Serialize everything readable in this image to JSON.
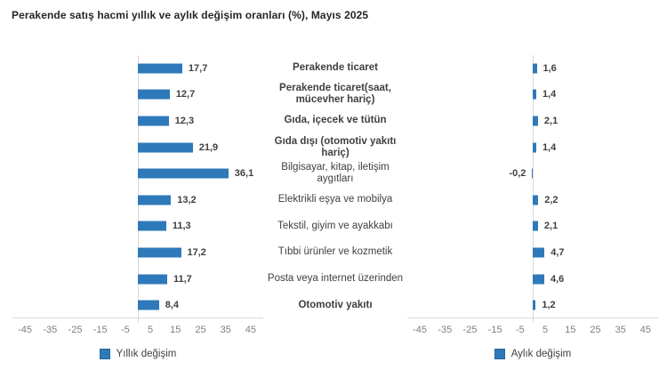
{
  "title": "Perakende satış hacmi yıllık ve aylık değişim oranları (%), Mayıs 2025",
  "colors": {
    "bar": "#2E79B9",
    "axis_line": "#D9D9D9",
    "tick_text": "#7F7F7F",
    "label_text": "#404040",
    "value_text": "#3F3F3F",
    "title_text": "#262626"
  },
  "chart_data": {
    "type": "bar",
    "orientation": "horizontal",
    "title": "Perakende satış hacmi yıllık ve aylık değişim oranları (%), Mayıs 2025",
    "categories": [
      "Perakende ticaret",
      "Perakende ticaret(saat, mücevher hariç)",
      "Gıda, içecek ve tütün",
      "Gıda dışı (otomotiv yakıtı hariç)",
      "Bilgisayar, kitap, iletişim aygıtları",
      "Elektrikli eşya ve mobilya",
      "Tekstil, giyim ve ayakkabı",
      "Tıbbi ürünler ve kozmetik",
      "Posta veya internet üzerinden",
      "Otomotiv yakıtı"
    ],
    "category_bold": [
      true,
      true,
      true,
      true,
      false,
      false,
      false,
      false,
      false,
      true
    ],
    "series": [
      {
        "name": "Yıllık değişim",
        "values": [
          17.7,
          12.7,
          12.3,
          21.9,
          36.1,
          13.2,
          11.3,
          17.2,
          11.7,
          8.4
        ],
        "display_values": [
          "17,7",
          "12,7",
          "12,3",
          "21,9",
          "36,1",
          "13,2",
          "11,3",
          "17,2",
          "11,7",
          "8,4"
        ]
      },
      {
        "name": "Aylık değişim",
        "values": [
          1.6,
          1.4,
          2.1,
          1.4,
          -0.2,
          2.2,
          2.1,
          4.7,
          4.6,
          1.2
        ],
        "display_values": [
          "1,6",
          "1,4",
          "2,1",
          "1,4",
          "-0,2",
          "2,2",
          "2,1",
          "4,7",
          "4,6",
          "1,2"
        ]
      }
    ],
    "x_ticks": [
      -45,
      -35,
      -25,
      -15,
      -5,
      5,
      15,
      25,
      35,
      45
    ],
    "xlim": [
      -50,
      50
    ],
    "grid": "zero-line-only",
    "legend_position": "bottom",
    "legend": [
      "Yıllık değişim",
      "Aylık değişim"
    ]
  }
}
